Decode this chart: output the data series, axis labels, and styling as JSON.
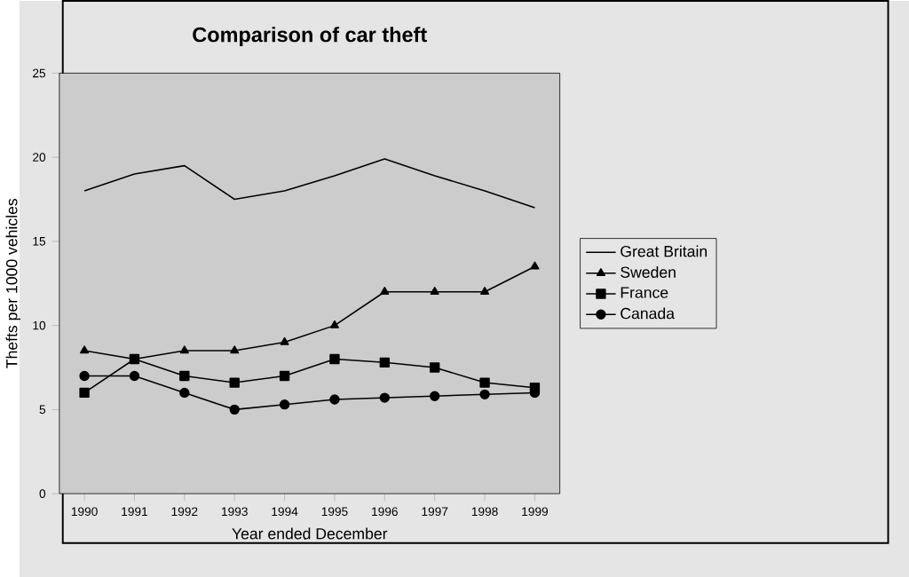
{
  "chart_data": {
    "type": "line",
    "title": "Comparison of car theft",
    "xlabel": "Year ended December",
    "ylabel": "Thefts per 1000 vehicles",
    "categories": [
      "1990",
      "1991",
      "1992",
      "1993",
      "1994",
      "1995",
      "1996",
      "1997",
      "1998",
      "1999"
    ],
    "ylim": [
      0,
      25
    ],
    "yticks": [
      0,
      5,
      10,
      15,
      20,
      25
    ],
    "legend": "right",
    "grid": false,
    "series": [
      {
        "name": "Great Britain",
        "color": "#000000",
        "marker": "none",
        "values": [
          18,
          19,
          19.5,
          17.5,
          18,
          18.9,
          19.9,
          18.9,
          18,
          17
        ]
      },
      {
        "name": "Sweden",
        "color": "#000000",
        "marker": "triangle",
        "values": [
          8.5,
          8,
          8.5,
          8.5,
          9,
          10,
          12,
          12,
          12,
          13.5
        ]
      },
      {
        "name": "France",
        "color": "#000000",
        "marker": "square",
        "values": [
          6,
          8,
          7,
          6.6,
          7,
          8,
          7.8,
          7.5,
          6.6,
          6.3
        ]
      },
      {
        "name": "Canada",
        "color": "#000000",
        "marker": "circle",
        "values": [
          7,
          7,
          6,
          5,
          5.3,
          5.6,
          5.7,
          5.8,
          5.9,
          6
        ]
      }
    ]
  }
}
